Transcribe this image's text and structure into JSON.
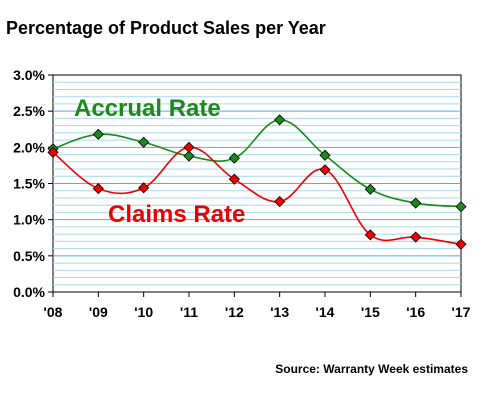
{
  "chart_data": {
    "type": "line",
    "title": "Percentage of Product Sales per Year",
    "source": "Source: Warranty Week estimates",
    "categories": [
      "'08",
      "'09",
      "'10",
      "'11",
      "'12",
      "'13",
      "'14",
      "'15",
      "'16",
      "'17"
    ],
    "ylim": [
      0,
      3.0
    ],
    "yticks": [
      "0.0%",
      "0.5%",
      "1.0%",
      "1.5%",
      "2.0%",
      "2.5%",
      "3.0%"
    ],
    "ytick_values": [
      0,
      0.5,
      1.0,
      1.5,
      2.0,
      2.5,
      3.0
    ],
    "grid": true,
    "series": [
      {
        "name": "Accrual Rate",
        "color": "#1a8a1a",
        "values": [
          1.98,
          2.18,
          2.07,
          1.88,
          1.85,
          2.38,
          1.89,
          1.42,
          1.23,
          1.18
        ]
      },
      {
        "name": "Claims Rate",
        "color": "#ee0000",
        "values": [
          1.93,
          1.43,
          1.44,
          2.0,
          1.56,
          1.25,
          1.69,
          0.79,
          0.76,
          0.66
        ]
      }
    ]
  }
}
